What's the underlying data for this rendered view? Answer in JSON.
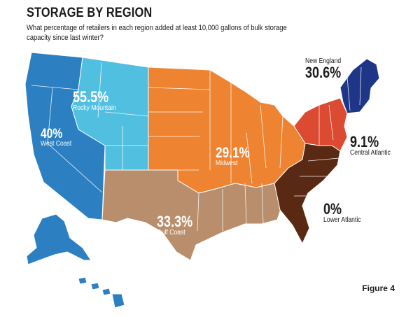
{
  "title": "STORAGE BY REGION",
  "subtitle": "What percentage of retailers in each region added at least 10,000 gallons of bulk storage capacity since last winter?",
  "figure_label": "Figure 4",
  "regions": {
    "west_coast": {
      "name": "West Coast",
      "value": "40%",
      "color": "#2c7fc1"
    },
    "rocky_mountain": {
      "name": "Rocky Mountain",
      "value": "55.5%",
      "color": "#51bfe0"
    },
    "midwest": {
      "name": "Midwest",
      "value": "29.1%",
      "color": "#ee8432"
    },
    "gulf_coast": {
      "name": "Gulf Coast",
      "value": "33.3%",
      "color": "#b98e6c"
    },
    "new_england": {
      "name": "New England",
      "value": "30.6%",
      "color": "#1f3688"
    },
    "central_atlantic": {
      "name": "Central Atlantic",
      "value": "9.1%",
      "color": "#dc4b31"
    },
    "lower_atlantic": {
      "name": "Lower Atlantic",
      "value": "0%",
      "color": "#5a2914"
    }
  }
}
